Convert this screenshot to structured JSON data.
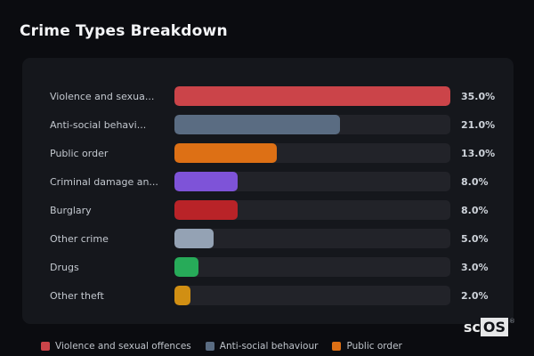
{
  "page": {
    "title": "Crime Types Breakdown",
    "background_color": "#0b0c10",
    "card_background_color": "#15171c",
    "bar_track_color": "#222329"
  },
  "chart_data": {
    "type": "bar",
    "orientation": "horizontal",
    "title": "Crime Types Breakdown",
    "unit": "%",
    "max_value": 35,
    "grid": false,
    "legend_position": "bottom",
    "categories": [
      "Violence and sexua...",
      "Anti-social behavi...",
      "Public order",
      "Criminal damage an...",
      "Burglary",
      "Other crime",
      "Drugs",
      "Other theft"
    ],
    "values": [
      35.0,
      21.0,
      13.0,
      8.0,
      8.0,
      5.0,
      3.0,
      2.0
    ],
    "value_labels": [
      "35.0%",
      "21.0%",
      "13.0%",
      "8.0%",
      "8.0%",
      "5.0%",
      "3.0%",
      "2.0%"
    ],
    "colors": [
      "#cb4449",
      "#5a6c82",
      "#dd7015",
      "#7e53d8",
      "#b92328",
      "#94a2b4",
      "#27ab59",
      "#d18f13"
    ],
    "legend": [
      {
        "label": "Violence and sexual offences",
        "color": "#cb4449"
      },
      {
        "label": "Anti-social behaviour",
        "color": "#5a6c82"
      },
      {
        "label": "Public order",
        "color": "#dd7015"
      }
    ]
  },
  "watermark": {
    "prefix": "sc",
    "suffix": "OS",
    "registered": "®"
  }
}
